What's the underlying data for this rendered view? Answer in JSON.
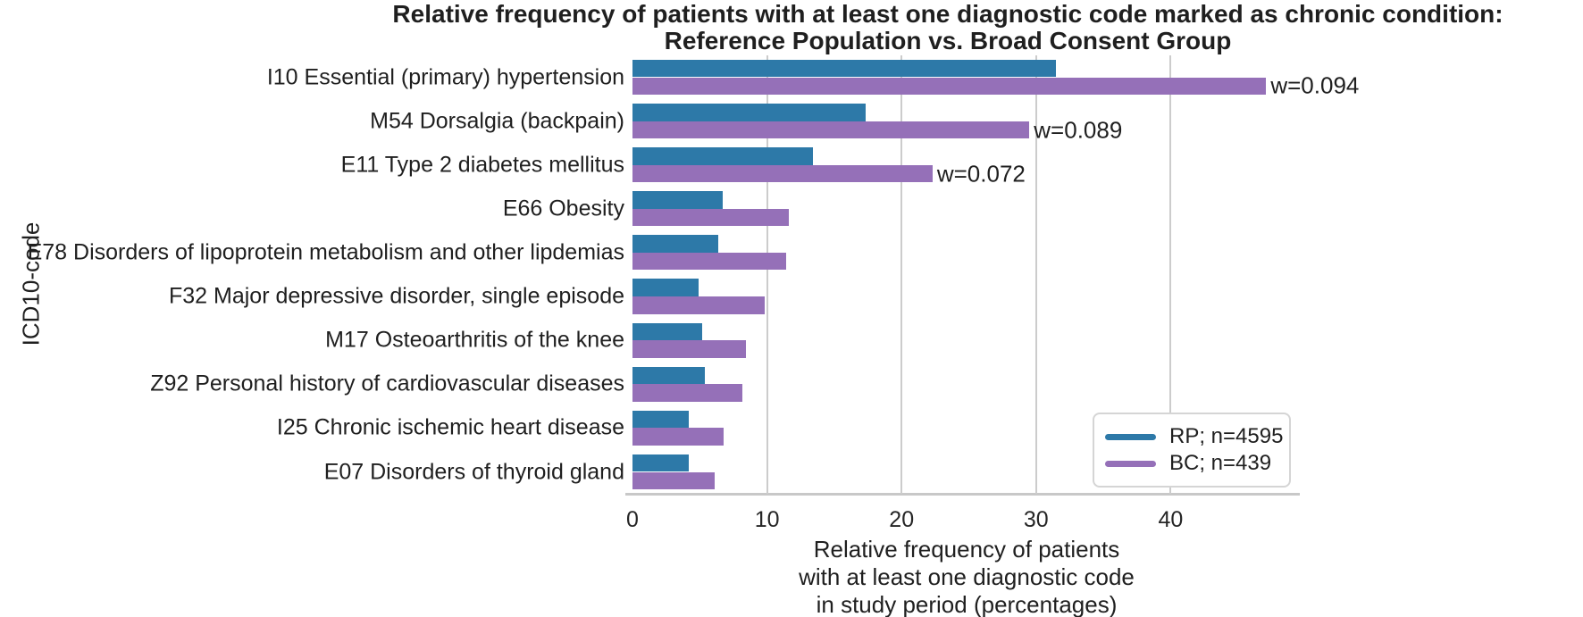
{
  "figure": {
    "title_line1": "Relative frequency of patients with at least one diagnostic code marked as chronic condition:",
    "title_line2": "Reference Population vs. Broad Consent Group",
    "ylabel": "ICD10-code",
    "xlabel_lines": [
      "Relative frequency of patients",
      "with at least one diagnostic code",
      "in study period (percentages)"
    ]
  },
  "colors": {
    "rp_blue": "#2d79a8",
    "bc_purple": "#9570b8",
    "gridline": "#cccccc",
    "axis_spine": "#c8c8c8",
    "text": "#1f1f1f"
  },
  "chart_data": {
    "type": "bar",
    "orientation": "horizontal",
    "title": "Relative frequency of patients with at least one diagnostic code marked as chronic condition: Reference Population vs. Broad Consent Group",
    "xlabel": "Relative frequency of patients with at least one diagnostic code in study period (percentages)",
    "ylabel": "ICD10-code",
    "categories": [
      "I10 Essential (primary) hypertension",
      "M54 Dorsalgia (backpain)",
      "E11 Type 2 diabetes mellitus",
      "E66 Obesity",
      "E78 Disorders of lipoprotein metabolism and other lipdemias",
      "F32 Major depressive disorder, single episode",
      "M17 Osteoarthritis of the knee",
      "Z92 Personal history of cardiovascular diseases",
      "I25 Chronic ischemic heart disease",
      "E07 Disorders of thyroid gland"
    ],
    "series": [
      {
        "name": "RP; n=4595",
        "color": "#2d79a8",
        "values": [
          31.5,
          17.3,
          13.4,
          6.7,
          6.4,
          4.9,
          5.2,
          5.4,
          4.2,
          4.2
        ]
      },
      {
        "name": "BC; n=439",
        "color": "#9570b8",
        "values": [
          47.1,
          29.5,
          22.3,
          11.6,
          11.4,
          9.8,
          8.4,
          8.2,
          6.8,
          6.1
        ]
      }
    ],
    "annotations": [
      {
        "category_index": 0,
        "text": "w=0.094"
      },
      {
        "category_index": 1,
        "text": "w=0.089"
      },
      {
        "category_index": 2,
        "text": "w=0.072"
      }
    ],
    "xlim": [
      0,
      49.6
    ],
    "xticks": [
      0,
      10,
      20,
      30,
      40
    ],
    "grid": "vertical gridlines at xticks",
    "legend_position": "lower right"
  }
}
